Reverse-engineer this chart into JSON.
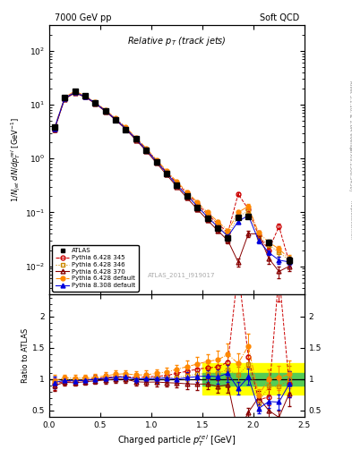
{
  "title_left": "7000 GeV pp",
  "title_right": "Soft QCD",
  "plot_title": "Relative $p_T$ (track jets)",
  "xlabel": "Charged particle $p_T^{rel}$ [GeV]",
  "ylabel_main": "$1/N_{jet}\\; dN/dp_T^{rel}\\; [\\mathrm{GeV}^{-1}]$",
  "ylabel_ratio": "Ratio to ATLAS",
  "right_label_top": "Rivet 3.1.10; ≥ 1.6M events",
  "right_label_mid": "[arXiv:1306.3436]",
  "right_label_bot": "mcplots.cern.ch",
  "watermark": "ATLAS_2011_I919017",
  "xlim": [
    0.0,
    2.5
  ],
  "ylim_main": [
    0.003,
    300
  ],
  "ylim_ratio": [
    0.4,
    2.35
  ],
  "ratio_yticks": [
    0.5,
    1.0,
    1.5,
    2.0
  ],
  "green_band": [
    0.9,
    1.1
  ],
  "yellow_band": [
    0.75,
    1.25
  ],
  "series": [
    {
      "label": "ATLAS",
      "color": "#000000",
      "marker": "s",
      "filled": true,
      "linestyle": "none",
      "x": [
        0.05,
        0.15,
        0.25,
        0.35,
        0.45,
        0.55,
        0.65,
        0.75,
        0.85,
        0.95,
        1.05,
        1.15,
        1.25,
        1.35,
        1.45,
        1.55,
        1.65,
        1.75,
        1.85,
        1.95,
        2.15,
        2.35
      ],
      "y": [
        3.8,
        13.5,
        17.5,
        14.5,
        10.8,
        7.6,
        5.2,
        3.5,
        2.3,
        1.45,
        0.87,
        0.53,
        0.32,
        0.2,
        0.125,
        0.078,
        0.052,
        0.033,
        0.08,
        0.085,
        0.028,
        0.013
      ],
      "yerr": [
        0.25,
        0.5,
        0.6,
        0.5,
        0.4,
        0.3,
        0.2,
        0.14,
        0.09,
        0.06,
        0.04,
        0.025,
        0.015,
        0.012,
        0.008,
        0.005,
        0.004,
        0.003,
        0.006,
        0.007,
        0.003,
        0.002
      ]
    },
    {
      "label": "Pythia 6.428 345",
      "color": "#cc0000",
      "marker": "o",
      "filled": false,
      "linestyle": "--",
      "x": [
        0.05,
        0.15,
        0.25,
        0.35,
        0.45,
        0.55,
        0.65,
        0.75,
        0.85,
        0.95,
        1.05,
        1.15,
        1.25,
        1.35,
        1.45,
        1.55,
        1.65,
        1.75,
        1.85,
        1.95,
        2.05,
        2.15,
        2.25,
        2.35
      ],
      "y": [
        3.5,
        13.0,
        17.0,
        14.3,
        10.9,
        7.8,
        5.4,
        3.65,
        2.35,
        1.5,
        0.91,
        0.56,
        0.35,
        0.225,
        0.145,
        0.092,
        0.062,
        0.042,
        0.22,
        0.115,
        0.038,
        0.02,
        0.055,
        0.012
      ],
      "yerr": [
        0.25,
        0.4,
        0.5,
        0.5,
        0.4,
        0.3,
        0.2,
        0.14,
        0.09,
        0.06,
        0.04,
        0.025,
        0.015,
        0.012,
        0.008,
        0.005,
        0.004,
        0.003,
        0.02,
        0.01,
        0.004,
        0.003,
        0.006,
        0.002
      ]
    },
    {
      "label": "Pythia 6.428 346",
      "color": "#cc8800",
      "marker": "s",
      "filled": false,
      "linestyle": ":",
      "x": [
        0.05,
        0.15,
        0.25,
        0.35,
        0.45,
        0.55,
        0.65,
        0.75,
        0.85,
        0.95,
        1.05,
        1.15,
        1.25,
        1.35,
        1.45,
        1.55,
        1.65,
        1.75,
        1.85,
        1.95,
        2.05,
        2.15,
        2.25,
        2.35
      ],
      "y": [
        3.6,
        13.3,
        17.2,
        14.4,
        10.8,
        7.7,
        5.35,
        3.6,
        2.3,
        1.47,
        0.89,
        0.54,
        0.33,
        0.21,
        0.135,
        0.085,
        0.057,
        0.038,
        0.085,
        0.105,
        0.035,
        0.025,
        0.018,
        0.013
      ],
      "yerr": [
        0.25,
        0.4,
        0.5,
        0.5,
        0.4,
        0.3,
        0.2,
        0.14,
        0.09,
        0.06,
        0.04,
        0.025,
        0.015,
        0.012,
        0.008,
        0.005,
        0.004,
        0.003,
        0.008,
        0.009,
        0.004,
        0.003,
        0.003,
        0.002
      ]
    },
    {
      "label": "Pythia 6.428 370",
      "color": "#880000",
      "marker": "^",
      "filled": false,
      "linestyle": "-",
      "x": [
        0.05,
        0.15,
        0.25,
        0.35,
        0.45,
        0.55,
        0.65,
        0.75,
        0.85,
        0.95,
        1.05,
        1.15,
        1.25,
        1.35,
        1.45,
        1.55,
        1.65,
        1.75,
        1.85,
        1.95,
        2.05,
        2.15,
        2.25,
        2.35
      ],
      "y": [
        3.4,
        12.8,
        16.5,
        13.9,
        10.5,
        7.5,
        5.2,
        3.5,
        2.2,
        1.38,
        0.83,
        0.5,
        0.3,
        0.185,
        0.115,
        0.072,
        0.046,
        0.03,
        0.012,
        0.04,
        0.04,
        0.014,
        0.008,
        0.01
      ],
      "yerr": [
        0.25,
        0.4,
        0.5,
        0.5,
        0.4,
        0.3,
        0.2,
        0.14,
        0.09,
        0.06,
        0.04,
        0.025,
        0.015,
        0.012,
        0.008,
        0.005,
        0.004,
        0.003,
        0.002,
        0.005,
        0.005,
        0.003,
        0.002,
        0.002
      ]
    },
    {
      "label": "Pythia 6.428 default",
      "color": "#ff8800",
      "marker": "o",
      "filled": true,
      "linestyle": "-.",
      "x": [
        0.05,
        0.15,
        0.25,
        0.35,
        0.45,
        0.55,
        0.65,
        0.75,
        0.85,
        0.95,
        1.05,
        1.15,
        1.25,
        1.35,
        1.45,
        1.55,
        1.65,
        1.75,
        1.85,
        1.95,
        2.05,
        2.15,
        2.25,
        2.35
      ],
      "y": [
        3.7,
        13.8,
        17.8,
        14.8,
        11.1,
        8.0,
        5.6,
        3.8,
        2.45,
        1.55,
        0.95,
        0.59,
        0.37,
        0.24,
        0.155,
        0.1,
        0.068,
        0.046,
        0.1,
        0.13,
        0.042,
        0.028,
        0.021,
        0.014
      ],
      "yerr": [
        0.25,
        0.5,
        0.6,
        0.5,
        0.4,
        0.3,
        0.2,
        0.15,
        0.1,
        0.07,
        0.04,
        0.025,
        0.015,
        0.012,
        0.009,
        0.006,
        0.005,
        0.004,
        0.01,
        0.012,
        0.004,
        0.003,
        0.003,
        0.002
      ]
    },
    {
      "label": "Pythia 8.308 default",
      "color": "#0000dd",
      "marker": "^",
      "filled": true,
      "linestyle": "-",
      "x": [
        0.05,
        0.15,
        0.25,
        0.35,
        0.45,
        0.55,
        0.65,
        0.75,
        0.85,
        0.95,
        1.05,
        1.15,
        1.25,
        1.35,
        1.45,
        1.55,
        1.65,
        1.75,
        1.85,
        1.95,
        2.05,
        2.15,
        2.25,
        2.35
      ],
      "y": [
        3.6,
        13.2,
        17.0,
        14.2,
        10.8,
        7.7,
        5.35,
        3.62,
        2.3,
        1.46,
        0.88,
        0.54,
        0.32,
        0.205,
        0.13,
        0.082,
        0.054,
        0.036,
        0.068,
        0.088,
        0.03,
        0.018,
        0.013,
        0.012
      ],
      "yerr": [
        0.25,
        0.4,
        0.5,
        0.5,
        0.4,
        0.3,
        0.2,
        0.14,
        0.09,
        0.06,
        0.04,
        0.025,
        0.015,
        0.012,
        0.008,
        0.005,
        0.004,
        0.003,
        0.006,
        0.008,
        0.003,
        0.002,
        0.002,
        0.002
      ]
    }
  ]
}
